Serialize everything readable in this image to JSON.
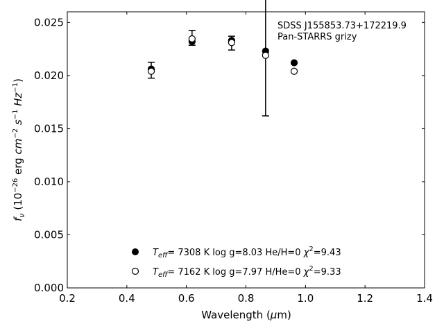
{
  "chart_data": {
    "type": "scatter",
    "title": "",
    "xlabel": "Wavelength (μm)",
    "ylabel": "f_ν (10^-26 erg cm^-2 s^-1 Hz^-1)",
    "xlim": [
      0.2,
      1.4
    ],
    "ylim": [
      0.0,
      0.026
    ],
    "x_ticks": [
      "0.2",
      "0.4",
      "0.6",
      "0.8",
      "1.0",
      "1.2",
      "1.4"
    ],
    "y_ticks": [
      "0.000",
      "0.005",
      "0.010",
      "0.015",
      "0.020",
      "0.025"
    ],
    "annotation": [
      "SDSS J155853.73+172219.9",
      "Pan-STARRS grizy"
    ],
    "observed": {
      "x": [
        0.482,
        0.619,
        0.752,
        0.866,
        0.962
      ],
      "y": [
        0.0205,
        0.02355,
        0.02305,
        0.0219,
        0.0204
      ],
      "yerr": [
        0.00075,
        0.0007,
        0.00065,
        0.0057,
        0.0
      ]
    },
    "series": [
      {
        "name": "T_eff= 7308 K log g=8.03 He/H=0 χ²=9.43",
        "marker": "filled-circle",
        "x": [
          0.482,
          0.619,
          0.752,
          0.866,
          0.962
        ],
        "y": [
          0.0206,
          0.0232,
          0.0233,
          0.0223,
          0.0212
        ]
      },
      {
        "name": "T_eff= 7162 K log g=7.97 H/He=0 χ²=9.33",
        "marker": "open-circle",
        "x": [
          0.482,
          0.619,
          0.752,
          0.866,
          0.962
        ],
        "y": [
          0.0204,
          0.02345,
          0.0231,
          0.0219,
          0.0204
        ]
      }
    ],
    "legend": {
      "placement": "bottom-center",
      "entries": [
        {
          "teff_value": "7308 K",
          "logg": "log g=8.03",
          "comp": "He/H=0",
          "chi_value": "=9.43"
        },
        {
          "teff_value": "7162 K",
          "logg": "log g=7.97",
          "comp": "H/He=0",
          "chi_value": "=9.33"
        }
      ]
    },
    "grid": false,
    "colors": {
      "marker": "#000000",
      "axis": "#000000",
      "background": "#ffffff"
    }
  }
}
